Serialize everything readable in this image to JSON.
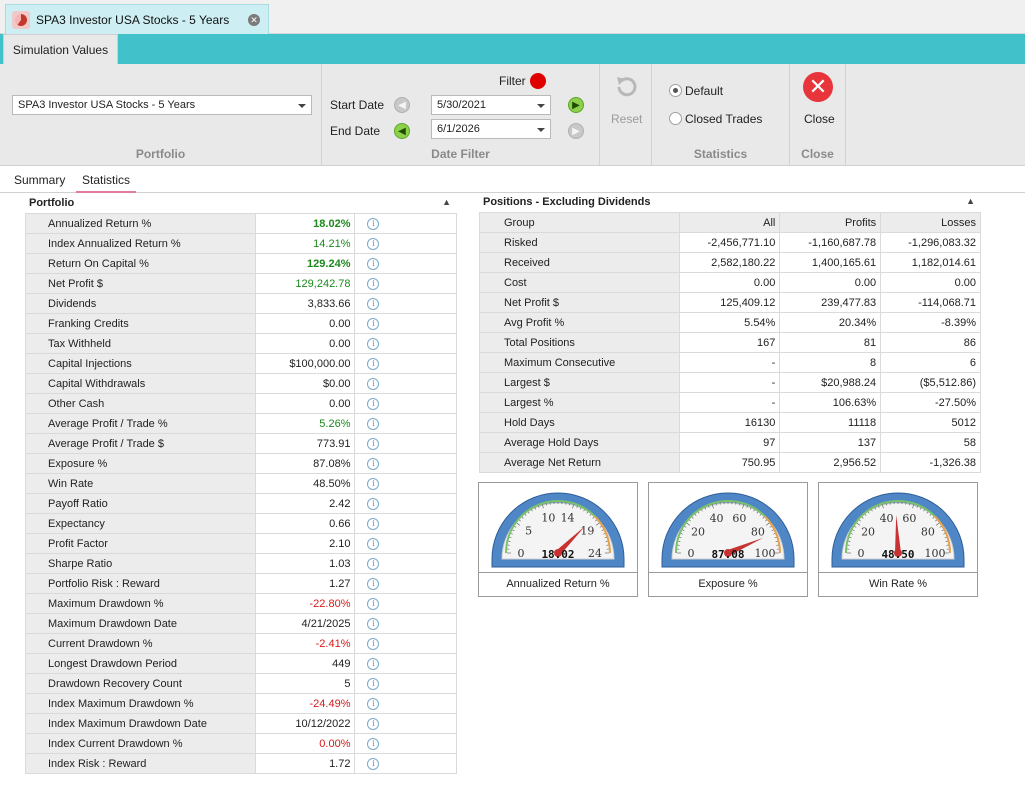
{
  "document": {
    "tab_title": "SPA3 Investor USA Stocks - 5 Years"
  },
  "ribbon": {
    "tab_label": "Simulation Values",
    "portfolio": {
      "selected": "SPA3 Investor USA Stocks - 5 Years",
      "group_label": "Portfolio"
    },
    "date_filter": {
      "filter_label": "Filter",
      "start_label": "Start Date",
      "start_value": "5/30/2021",
      "end_label": "End Date",
      "end_value": "6/1/2026",
      "group_label": "Date Filter"
    },
    "reset_label": "Reset",
    "statistics": {
      "default_label": "Default",
      "closed_label": "Closed Trades",
      "group_label": "Statistics"
    },
    "close": {
      "button_label": "Close",
      "group_label": "Close"
    }
  },
  "subtabs": [
    "Summary",
    "Statistics"
  ],
  "portfolio_panel": {
    "title": "Portfolio",
    "rows": [
      {
        "label": "Annualized Return %",
        "value": "18.02%",
        "cls": "green b"
      },
      {
        "label": "Index Annualized Return %",
        "value": "14.21%",
        "cls": "green"
      },
      {
        "label": "Return On Capital %",
        "value": "129.24%",
        "cls": "green b"
      },
      {
        "label": "Net Profit $",
        "value": "129,242.78",
        "cls": "green"
      },
      {
        "label": "Dividends",
        "value": "3,833.66",
        "cls": ""
      },
      {
        "label": "Franking Credits",
        "value": "0.00",
        "cls": ""
      },
      {
        "label": "Tax Withheld",
        "value": "0.00",
        "cls": ""
      },
      {
        "label": "Capital Injections",
        "value": "$100,000.00",
        "cls": ""
      },
      {
        "label": "Capital Withdrawals",
        "value": "$0.00",
        "cls": ""
      },
      {
        "label": "Other Cash",
        "value": "0.00",
        "cls": ""
      },
      {
        "label": "Average Profit / Trade %",
        "value": "5.26%",
        "cls": "green"
      },
      {
        "label": "Average Profit / Trade $",
        "value": "773.91",
        "cls": ""
      },
      {
        "label": "Exposure %",
        "value": "87.08%",
        "cls": ""
      },
      {
        "label": "Win Rate",
        "value": "48.50%",
        "cls": ""
      },
      {
        "label": "Payoff Ratio",
        "value": "2.42",
        "cls": ""
      },
      {
        "label": "Expectancy",
        "value": "0.66",
        "cls": ""
      },
      {
        "label": "Profit Factor",
        "value": "2.10",
        "cls": ""
      },
      {
        "label": "Sharpe Ratio",
        "value": "1.03",
        "cls": ""
      },
      {
        "label": "Portfolio Risk : Reward",
        "value": "1.27",
        "cls": ""
      },
      {
        "label": "Maximum Drawdown %",
        "value": "-22.80%",
        "cls": "red"
      },
      {
        "label": "Maximum Drawdown Date",
        "value": "4/21/2025",
        "cls": ""
      },
      {
        "label": "Current Drawdown %",
        "value": "-2.41%",
        "cls": "red"
      },
      {
        "label": "Longest Drawdown Period",
        "value": "449",
        "cls": ""
      },
      {
        "label": "Drawdown Recovery Count",
        "value": "5",
        "cls": ""
      },
      {
        "label": "Index Maximum Drawdown %",
        "value": "-24.49%",
        "cls": "red"
      },
      {
        "label": "Index Maximum Drawdown Date",
        "value": "10/12/2022",
        "cls": ""
      },
      {
        "label": "Index Current Drawdown %",
        "value": "0.00%",
        "cls": "red"
      },
      {
        "label": "Index Risk : Reward",
        "value": "1.72",
        "cls": ""
      }
    ]
  },
  "positions_panel": {
    "title": "Positions - Excluding Dividends",
    "header": [
      "Group",
      "All",
      "Profits",
      "Losses"
    ],
    "rows": [
      [
        "Risked",
        "-2,456,771.10",
        "-1,160,687.78",
        "-1,296,083.32"
      ],
      [
        "Received",
        "2,582,180.22",
        "1,400,165.61",
        "1,182,014.61"
      ],
      [
        "Cost",
        "0.00",
        "0.00",
        "0.00"
      ],
      [
        "Net Profit $",
        "125,409.12",
        "239,477.83",
        "-114,068.71"
      ],
      [
        "Avg Profit %",
        "5.54%",
        "20.34%",
        "-8.39%"
      ],
      [
        "Total Positions",
        "167",
        "81",
        "86"
      ],
      [
        "Maximum Consecutive",
        "-",
        "8",
        "6"
      ],
      [
        "Largest $",
        "-",
        "$20,988.24",
        "($5,512.86)"
      ],
      [
        "Largest %",
        "-",
        "106.63%",
        "-27.50%"
      ],
      [
        "Hold Days",
        "16130",
        "11118",
        "5012"
      ],
      [
        "Average Hold Days",
        "97",
        "137",
        "58"
      ],
      [
        "Average Net Return",
        "750.95",
        "2,956.52",
        "-1,326.38"
      ]
    ]
  },
  "gauges": [
    {
      "caption": "Annualized Return %",
      "value": 18.02,
      "display": "18.02",
      "min": 0,
      "max": 24,
      "ticks": [
        "0",
        "5",
        "10",
        "14",
        "19",
        "24"
      ],
      "tick_values": [
        0,
        5,
        10,
        14,
        19,
        24
      ]
    },
    {
      "caption": "Exposure %",
      "value": 87.08,
      "display": "87.08",
      "min": 0,
      "max": 100,
      "ticks": [
        "0",
        "20",
        "40",
        "60",
        "80",
        "100"
      ],
      "tick_values": [
        0,
        20,
        40,
        60,
        80,
        100
      ]
    },
    {
      "caption": "Win Rate %",
      "value": 48.5,
      "display": "48.50",
      "min": 0,
      "max": 100,
      "ticks": [
        "0",
        "20",
        "40",
        "60",
        "80",
        "100"
      ],
      "tick_values": [
        0,
        20,
        40,
        60,
        80,
        100
      ]
    }
  ]
}
